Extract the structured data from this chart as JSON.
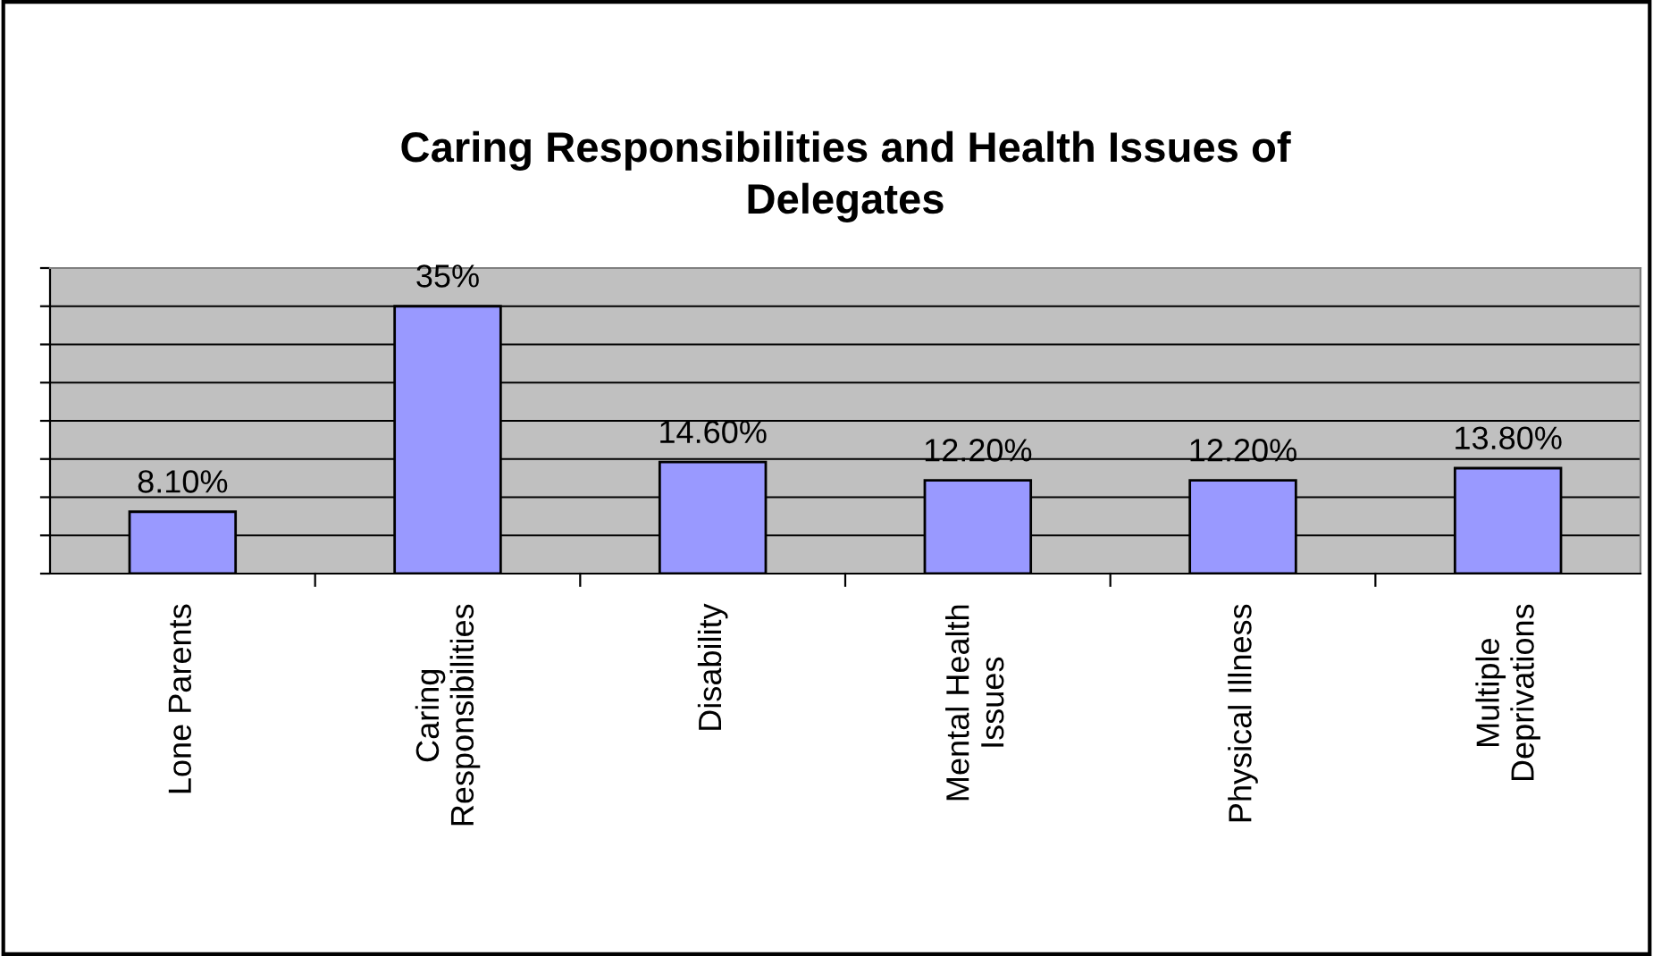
{
  "chart_data": {
    "type": "bar",
    "title": "Caring Responsibilities and Health Issues of\nDelegates",
    "categories": [
      "Lone Parents",
      "Caring\nResponsibilities",
      "Disability",
      "Mental Health\nIssues",
      "Physical Illness",
      "Multiple\nDeprivations"
    ],
    "values": [
      8.1,
      35,
      14.6,
      12.2,
      12.2,
      13.8
    ],
    "value_labels": [
      "8.10%",
      "35%",
      "14.60%",
      "12.20%",
      "12.20%",
      "13.80%"
    ],
    "color": "#9999ff",
    "ylim": [
      0,
      40
    ],
    "yticks": [
      {
        "value": 0,
        "label": null
      },
      {
        "value": 5,
        "label": null
      },
      {
        "value": 10,
        "label": null
      },
      {
        "value": 15,
        "label": null
      },
      {
        "value": 20,
        "label": null
      },
      {
        "value": 25,
        "label": null
      },
      {
        "value": 30,
        "label": null
      },
      {
        "value": 35,
        "label": null
      },
      {
        "value": 40,
        "label": null
      }
    ],
    "grid": "y",
    "tick_labels": "x"
  }
}
